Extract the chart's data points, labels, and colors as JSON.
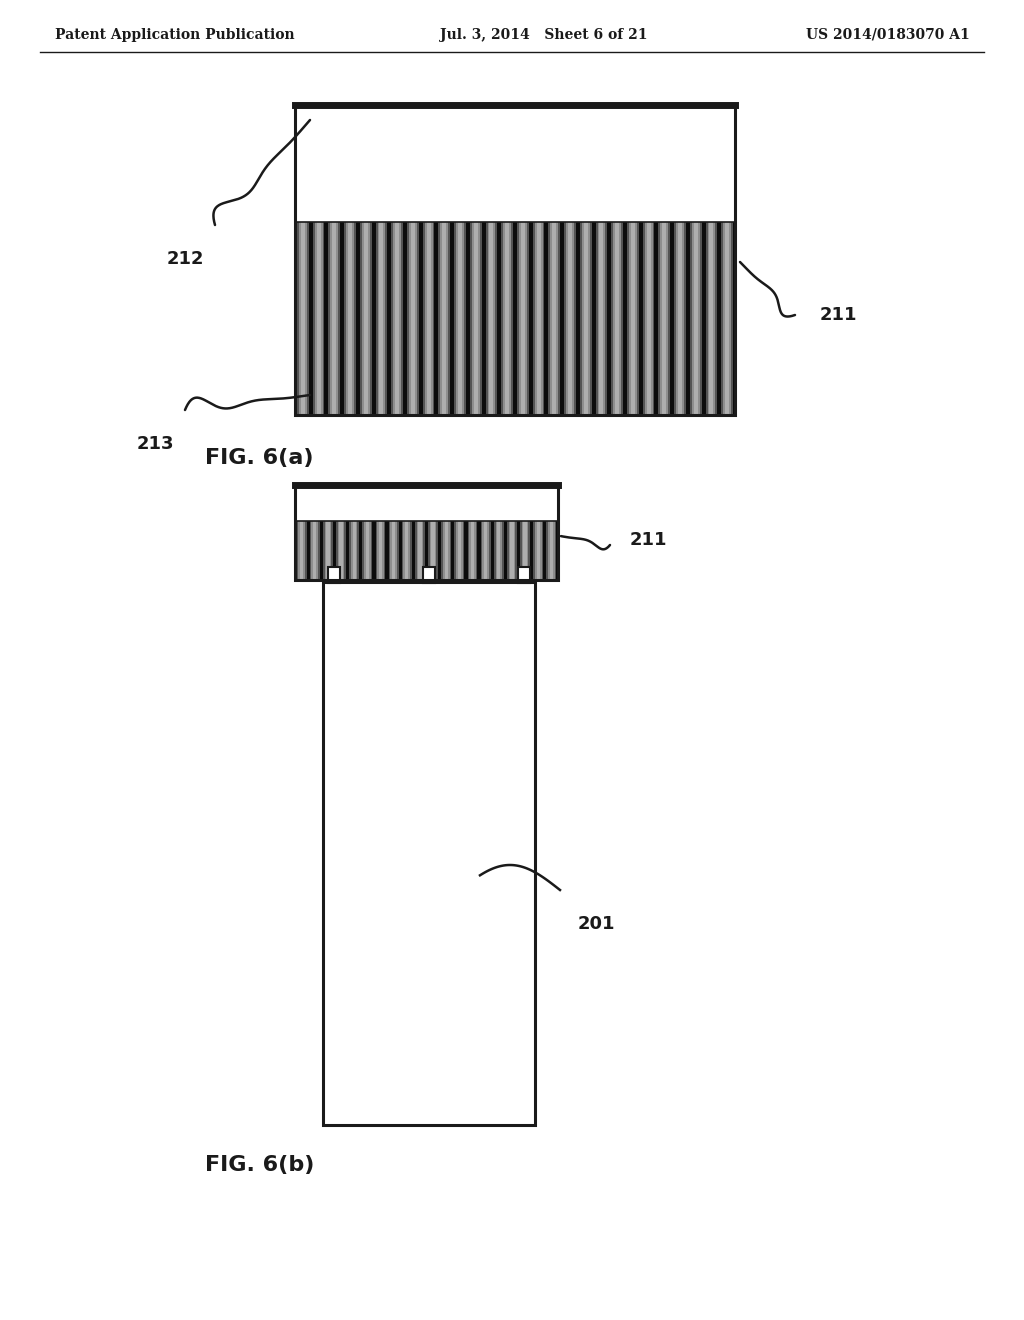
{
  "bg_color": "#ffffff",
  "header_left": "Patent Application Publication",
  "header_mid": "Jul. 3, 2014   Sheet 6 of 21",
  "header_right": "US 2014/0183070 A1",
  "line_color": "#1a1a1a",
  "fig_a_label": "FIG. 6(a)",
  "fig_b_label": "FIG. 6(b)",
  "label_211a": "211",
  "label_212": "212",
  "label_213": "213",
  "label_211b": "211",
  "label_201": "201"
}
